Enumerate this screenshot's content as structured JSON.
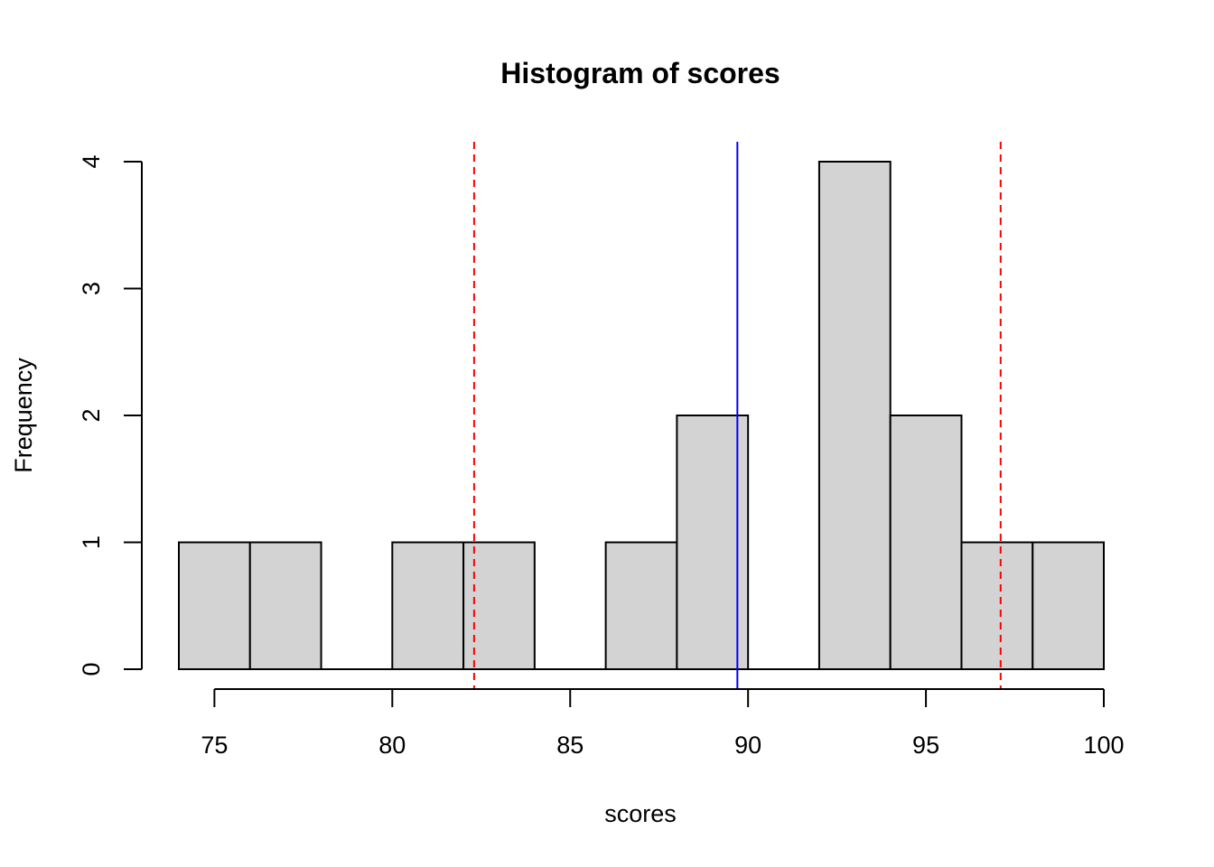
{
  "chart_data": {
    "type": "bar",
    "subtype": "histogram",
    "title": "Histogram of scores",
    "xlabel": "scores",
    "ylabel": "Frequency",
    "bins": [
      {
        "x0": 74,
        "x1": 76,
        "count": 1
      },
      {
        "x0": 76,
        "x1": 78,
        "count": 1
      },
      {
        "x0": 78,
        "x1": 80,
        "count": 0
      },
      {
        "x0": 80,
        "x1": 82,
        "count": 1
      },
      {
        "x0": 82,
        "x1": 84,
        "count": 1
      },
      {
        "x0": 84,
        "x1": 86,
        "count": 0
      },
      {
        "x0": 86,
        "x1": 88,
        "count": 1
      },
      {
        "x0": 88,
        "x1": 90,
        "count": 2
      },
      {
        "x0": 90,
        "x1": 92,
        "count": 0
      },
      {
        "x0": 92,
        "x1": 94,
        "count": 4
      },
      {
        "x0": 94,
        "x1": 96,
        "count": 2
      },
      {
        "x0": 96,
        "x1": 98,
        "count": 1
      },
      {
        "x0": 98,
        "x1": 100,
        "count": 1
      }
    ],
    "xlim": [
      74,
      100
    ],
    "ylim": [
      0,
      4
    ],
    "xticks": [
      "75",
      "80",
      "85",
      "90",
      "95",
      "100"
    ],
    "yticks": [
      "0",
      "1",
      "2",
      "3",
      "4"
    ],
    "bar_color": "#d3d3d3",
    "vlines": [
      {
        "x": 89.7,
        "color": "#0000ff",
        "style": "solid"
      },
      {
        "x": 82.3,
        "color": "#ff0000",
        "style": "dashed"
      },
      {
        "x": 97.1,
        "color": "#ff0000",
        "style": "dashed"
      }
    ],
    "grid": false
  }
}
